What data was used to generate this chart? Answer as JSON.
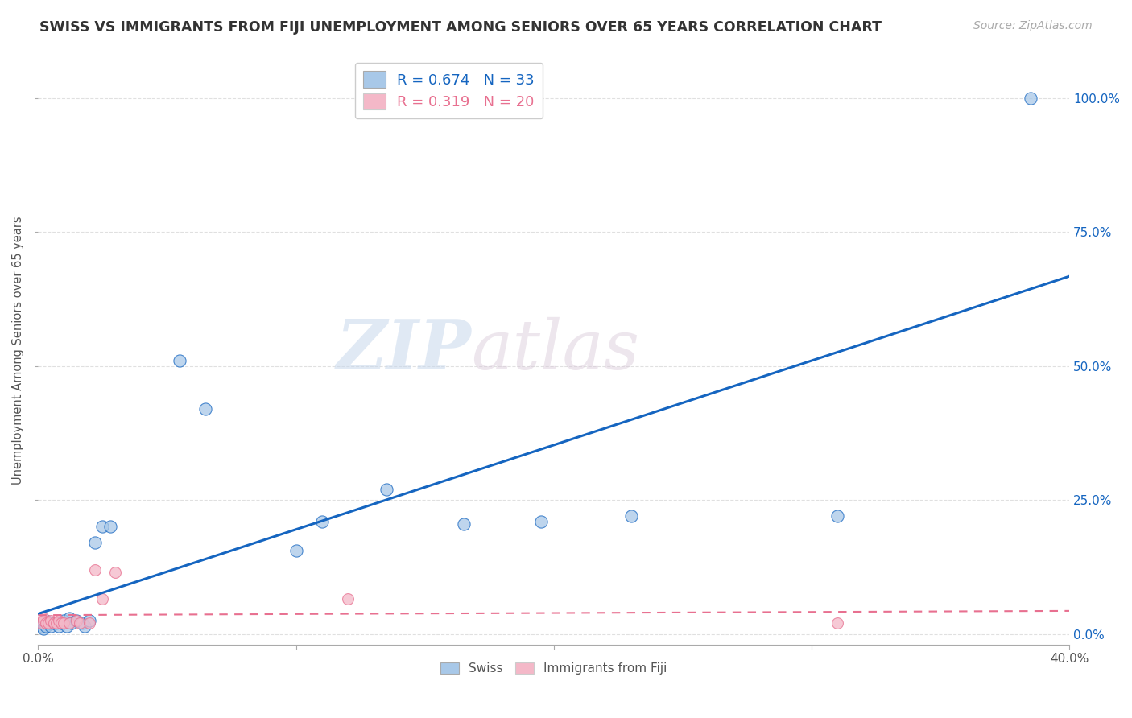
{
  "title": "SWISS VS IMMIGRANTS FROM FIJI UNEMPLOYMENT AMONG SENIORS OVER 65 YEARS CORRELATION CHART",
  "source": "Source: ZipAtlas.com",
  "ylabel": "Unemployment Among Seniors over 65 years",
  "xlim": [
    0.0,
    0.4
  ],
  "ylim": [
    -0.02,
    1.08
  ],
  "xticks": [
    0.0,
    0.1,
    0.2,
    0.3,
    0.4
  ],
  "xticklabels": [
    "0.0%",
    "",
    "",
    "",
    "40.0%"
  ],
  "yticks_left": [
    0.0,
    0.25,
    0.5,
    0.75,
    1.0
  ],
  "yticklabels_left": [
    "",
    "",
    "",
    "",
    ""
  ],
  "yticks_right": [
    0.0,
    0.25,
    0.5,
    0.75,
    1.0
  ],
  "yticklabels_right": [
    "0.0%",
    "25.0%",
    "50.0%",
    "75.0%",
    "100.0%"
  ],
  "legend_label_swiss": "R = 0.674   N = 33",
  "legend_label_fiji": "R = 0.319   N = 20",
  "swiss_color": "#a8c8e8",
  "fiji_color": "#f4b8c8",
  "trend_swiss_color": "#1565C0",
  "trend_fiji_color": "#e87090",
  "watermark_zip": "ZIP",
  "watermark_atlas": "atlas",
  "swiss_x": [
    0.001,
    0.002,
    0.002,
    0.003,
    0.003,
    0.004,
    0.005,
    0.005,
    0.006,
    0.007,
    0.008,
    0.009,
    0.01,
    0.011,
    0.012,
    0.013,
    0.015,
    0.017,
    0.018,
    0.02,
    0.022,
    0.025,
    0.028,
    0.055,
    0.065,
    0.1,
    0.11,
    0.135,
    0.165,
    0.195,
    0.23,
    0.31,
    0.385
  ],
  "swiss_y": [
    0.015,
    0.02,
    0.01,
    0.025,
    0.015,
    0.02,
    0.02,
    0.015,
    0.02,
    0.02,
    0.015,
    0.02,
    0.025,
    0.015,
    0.03,
    0.02,
    0.025,
    0.02,
    0.015,
    0.025,
    0.17,
    0.2,
    0.2,
    0.51,
    0.42,
    0.155,
    0.21,
    0.27,
    0.205,
    0.21,
    0.22,
    0.22,
    1.0
  ],
  "fiji_x": [
    0.001,
    0.002,
    0.002,
    0.003,
    0.004,
    0.005,
    0.006,
    0.007,
    0.008,
    0.009,
    0.01,
    0.012,
    0.015,
    0.016,
    0.02,
    0.022,
    0.025,
    0.03,
    0.12,
    0.31
  ],
  "fiji_y": [
    0.02,
    0.03,
    0.025,
    0.02,
    0.02,
    0.025,
    0.02,
    0.02,
    0.025,
    0.02,
    0.02,
    0.02,
    0.025,
    0.02,
    0.02,
    0.12,
    0.065,
    0.115,
    0.065,
    0.02
  ],
  "background_color": "#ffffff",
  "grid_color": "#dddddd",
  "bottom_label_swiss": "Swiss",
  "bottom_label_fiji": "Immigrants from Fiji"
}
